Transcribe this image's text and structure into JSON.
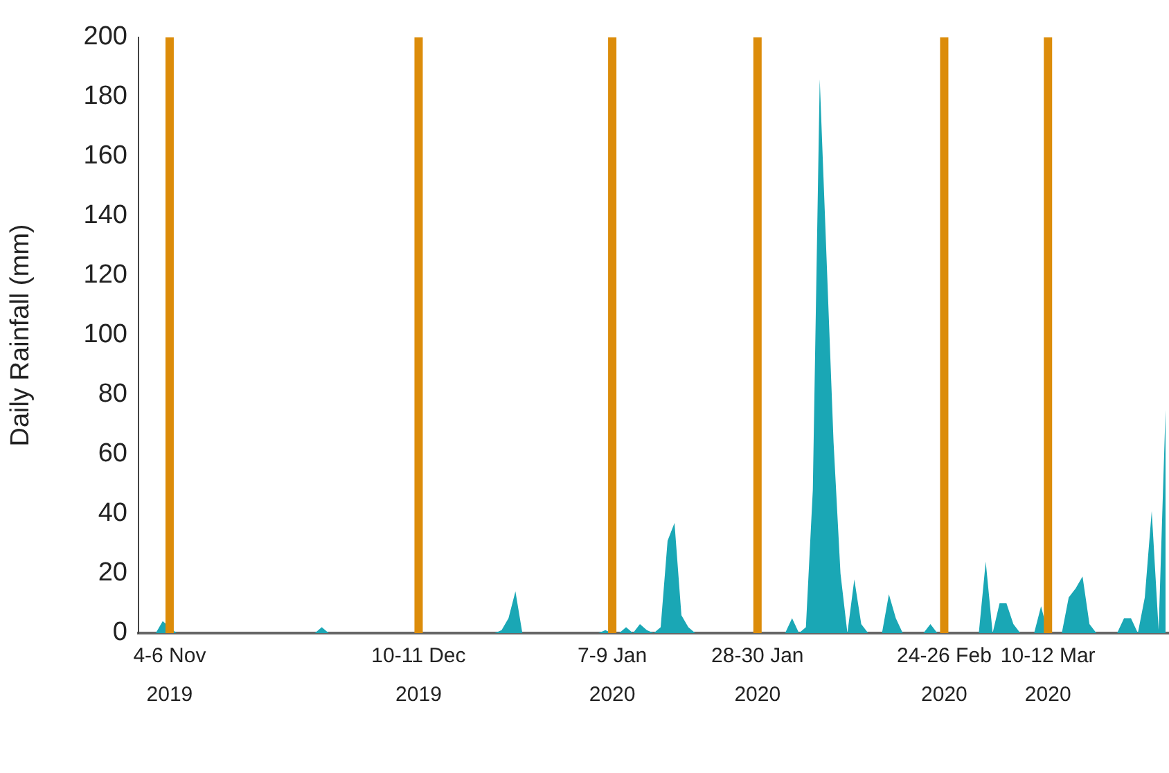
{
  "chart_data": {
    "type": "area",
    "ylabel": "Daily Rainfall (mm)",
    "x": [
      "2019-11-01",
      "2019-11-03",
      "2019-11-04",
      "2019-11-05",
      "2019-11-06",
      "2019-11-26",
      "2019-11-27",
      "2019-11-28",
      "2019-12-22",
      "2019-12-23",
      "2019-12-24",
      "2019-12-25",
      "2019-12-26",
      "2020-01-06",
      "2020-01-07",
      "2020-01-08",
      "2020-01-09",
      "2020-01-10",
      "2020-01-11",
      "2020-01-12",
      "2020-01-13",
      "2020-01-14",
      "2020-01-15",
      "2020-01-16",
      "2020-01-17",
      "2020-01-18",
      "2020-01-19",
      "2020-01-20",
      "2020-02-02",
      "2020-02-03",
      "2020-02-04",
      "2020-02-05",
      "2020-02-06",
      "2020-02-07",
      "2020-02-08",
      "2020-02-09",
      "2020-02-10",
      "2020-02-11",
      "2020-02-12",
      "2020-02-13",
      "2020-02-14",
      "2020-02-16",
      "2020-02-17",
      "2020-02-18",
      "2020-02-19",
      "2020-02-22",
      "2020-02-23",
      "2020-02-24",
      "2020-03-01",
      "2020-03-02",
      "2020-03-03",
      "2020-03-04",
      "2020-03-05",
      "2020-03-06",
      "2020-03-07",
      "2020-03-09",
      "2020-03-10",
      "2020-03-11",
      "2020-03-13",
      "2020-03-14",
      "2020-03-15",
      "2020-03-16",
      "2020-03-17",
      "2020-03-18",
      "2020-03-21",
      "2020-03-22",
      "2020-03-23",
      "2020-03-24",
      "2020-03-25",
      "2020-03-26",
      "2020-03-27",
      "2020-03-28"
    ],
    "series": [
      {
        "color": "#1aa7b5",
        "values": [
          0,
          0,
          4,
          2,
          0,
          0,
          2,
          0,
          0,
          1,
          5,
          14,
          0,
          0,
          1,
          0,
          0,
          2,
          0,
          3,
          1,
          0,
          2,
          31,
          37,
          6,
          2,
          0,
          0,
          5,
          0,
          2,
          48,
          186,
          125,
          64,
          20,
          0,
          18,
          3,
          0,
          0,
          13,
          5,
          0,
          0,
          3,
          0,
          0,
          24,
          0,
          10,
          10,
          3,
          0,
          0,
          9,
          0,
          0,
          12,
          15,
          19,
          3,
          0,
          0,
          5,
          5,
          0,
          12,
          41,
          1,
          75
        ]
      }
    ],
    "xlim": [
      "2019-10-31T12:00",
      "2020-03-28T12:00"
    ],
    "xticks": [
      {
        "value": "2019-11-05",
        "label": "4-6 Nov\n2019"
      },
      {
        "value": "2019-12-11",
        "label": "10-11 Dec\n2019"
      },
      {
        "value": "2020-01-08",
        "label": "7-9 Jan\n2020"
      },
      {
        "value": "2020-01-29",
        "label": "28-30 Jan\n2020"
      },
      {
        "value": "2020-02-25",
        "label": "24-26 Feb\n2020"
      },
      {
        "value": "2020-03-11",
        "label": "10-12 Mar\n2020"
      }
    ],
    "ylim": [
      0,
      200
    ],
    "yticks": [
      0,
      20,
      40,
      60,
      80,
      100,
      120,
      140,
      160,
      180,
      200
    ],
    "ref_lines": [
      {
        "axis": "x",
        "value": "2019-11-05",
        "color": "#dc8c0a"
      },
      {
        "axis": "x",
        "value": "2019-12-11",
        "color": "#dc8c0a"
      },
      {
        "axis": "x",
        "value": "2020-01-08",
        "color": "#dc8c0a"
      },
      {
        "axis": "x",
        "value": "2020-01-29",
        "color": "#dc8c0a"
      },
      {
        "axis": "x",
        "value": "2020-02-25",
        "color": "#dc8c0a"
      },
      {
        "axis": "x",
        "value": "2020-03-11",
        "color": "#dc8c0a"
      }
    ],
    "grid": false,
    "legend": false,
    "marker": "none"
  }
}
